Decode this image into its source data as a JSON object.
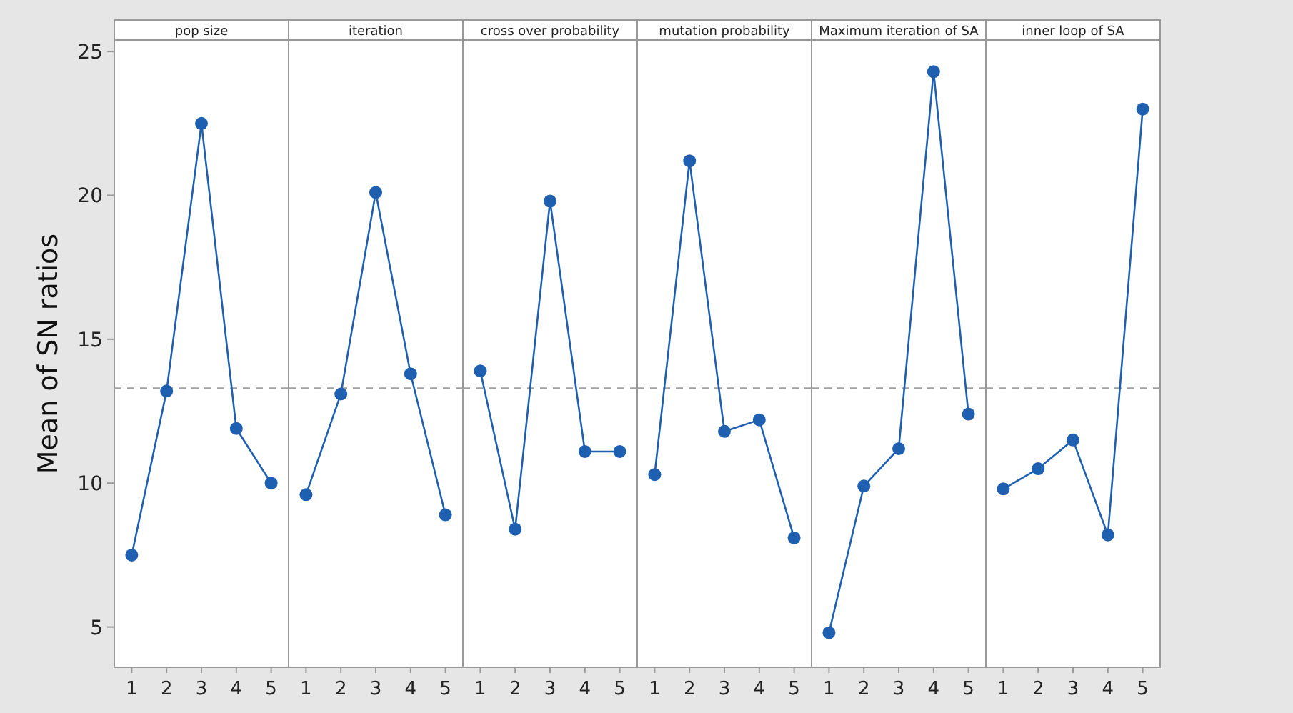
{
  "chart_data": [
    {
      "type": "line",
      "title": "pop size",
      "ylabel": "Mean of SN ratios",
      "categories": [
        "1",
        "2",
        "3",
        "4",
        "5"
      ],
      "series": [
        {
          "color": "#1f5fb0",
          "values": [
            7.5,
            13.2,
            22.5,
            11.9,
            10.0
          ]
        }
      ],
      "ylim": [
        3.6,
        25.4
      ],
      "yticks": [
        5,
        10,
        15,
        20,
        25
      ],
      "marker": "circle",
      "ref_lines": [
        {
          "axis": "y",
          "value": 13.3,
          "color": "#a0a0a0",
          "line_style": "dashed"
        }
      ]
    },
    {
      "type": "line",
      "title": "iteration",
      "categories": [
        "1",
        "2",
        "3",
        "4",
        "5"
      ],
      "series": [
        {
          "color": "#1f5fb0",
          "values": [
            9.6,
            13.1,
            20.1,
            13.8,
            8.9
          ]
        }
      ],
      "ylim": [
        3.6,
        25.4
      ],
      "tick_labels": "x",
      "marker": "circle",
      "ref_lines": [
        {
          "axis": "y",
          "value": 13.3,
          "color": "#a0a0a0",
          "line_style": "dashed"
        }
      ]
    },
    {
      "type": "line",
      "title": "cross over probability",
      "categories": [
        "1",
        "2",
        "3",
        "4",
        "5"
      ],
      "series": [
        {
          "color": "#1f5fb0",
          "values": [
            13.9,
            8.4,
            19.8,
            11.1,
            11.1
          ]
        }
      ],
      "ylim": [
        3.6,
        25.4
      ],
      "tick_labels": "x",
      "marker": "circle",
      "ref_lines": [
        {
          "axis": "y",
          "value": 13.3,
          "color": "#a0a0a0",
          "line_style": "dashed"
        }
      ]
    },
    {
      "type": "line",
      "title": "mutation probability",
      "categories": [
        "1",
        "2",
        "3",
        "4",
        "5"
      ],
      "series": [
        {
          "color": "#1f5fb0",
          "values": [
            10.3,
            21.2,
            11.8,
            12.2,
            8.1
          ]
        }
      ],
      "ylim": [
        3.6,
        25.4
      ],
      "tick_labels": "x",
      "marker": "circle",
      "ref_lines": [
        {
          "axis": "y",
          "value": 13.3,
          "color": "#a0a0a0",
          "line_style": "dashed"
        }
      ]
    },
    {
      "type": "line",
      "title": "Maximum iteration of SA",
      "categories": [
        "1",
        "2",
        "3",
        "4",
        "5"
      ],
      "series": [
        {
          "color": "#1f5fb0",
          "values": [
            4.8,
            9.9,
            11.2,
            24.3,
            12.4
          ]
        }
      ],
      "ylim": [
        3.6,
        25.4
      ],
      "tick_labels": "x",
      "marker": "circle",
      "ref_lines": [
        {
          "axis": "y",
          "value": 13.3,
          "color": "#a0a0a0",
          "line_style": "dashed"
        }
      ]
    },
    {
      "type": "line",
      "title": "inner loop of SA",
      "categories": [
        "1",
        "2",
        "3",
        "4",
        "5"
      ],
      "series": [
        {
          "color": "#1f5fb0",
          "values": [
            9.8,
            10.5,
            11.5,
            8.2,
            23.0
          ]
        }
      ],
      "ylim": [
        3.6,
        25.4
      ],
      "tick_labels": "x",
      "marker": "circle",
      "ref_lines": [
        {
          "axis": "y",
          "value": 13.3,
          "color": "#a0a0a0",
          "line_style": "dashed"
        }
      ]
    }
  ]
}
